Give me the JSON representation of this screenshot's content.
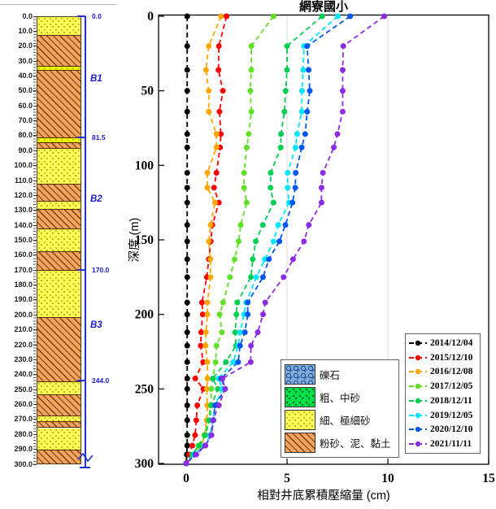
{
  "title": "網寮國小",
  "left_panel": {
    "depth_labels": [
      "0.0",
      "10.0",
      "20.0",
      "30.0",
      "40.0",
      "50.0",
      "60.0",
      "70.0",
      "80.0",
      "90.0",
      "100.0",
      "110.0",
      "120.0",
      "130.0",
      "140.0",
      "150.0",
      "160.0",
      "170.0",
      "180.0",
      "190.0",
      "200.0",
      "210.0",
      "220.0",
      "230.0",
      "240.0",
      "250.0",
      "260.0",
      "270.0",
      "280.0",
      "290.0",
      "300.0"
    ],
    "layers": [
      {
        "from": 0,
        "to": 12.5,
        "type": "fine"
      },
      {
        "from": 12.5,
        "to": 33.5,
        "type": "clay"
      },
      {
        "from": 33.5,
        "to": 35.5,
        "type": "fine",
        "bright": true
      },
      {
        "from": 35.5,
        "to": 81.5,
        "type": "clay"
      },
      {
        "from": 81.5,
        "to": 84,
        "type": "fine",
        "bright": true
      },
      {
        "from": 84,
        "to": 88.5,
        "type": "clay"
      },
      {
        "from": 88.5,
        "to": 112,
        "type": "fine"
      },
      {
        "from": 112,
        "to": 124,
        "type": "clay"
      },
      {
        "from": 124,
        "to": 129,
        "type": "fine"
      },
      {
        "from": 129,
        "to": 142.5,
        "type": "clay"
      },
      {
        "from": 142.5,
        "to": 157,
        "type": "fine"
      },
      {
        "from": 157,
        "to": 170,
        "type": "clay"
      },
      {
        "from": 170,
        "to": 201,
        "type": "fine"
      },
      {
        "from": 201,
        "to": 245,
        "type": "clay"
      },
      {
        "from": 245,
        "to": 253,
        "type": "fine"
      },
      {
        "from": 253,
        "to": 267.5,
        "type": "clay"
      },
      {
        "from": 267.5,
        "to": 271,
        "type": "fine"
      },
      {
        "from": 271,
        "to": 275.5,
        "type": "clay"
      },
      {
        "from": 275.5,
        "to": 290,
        "type": "fine"
      },
      {
        "from": 290,
        "to": 300,
        "type": "clay"
      }
    ],
    "boundary_marks": [
      {
        "label": "0.0",
        "depth": 0
      },
      {
        "label": "81.5",
        "depth": 81.5
      },
      {
        "label": "170.0",
        "depth": 170
      },
      {
        "label": "244.0",
        "depth": 244
      }
    ],
    "zone_labels": [
      {
        "label": "B1",
        "depth": 42
      },
      {
        "label": "B2",
        "depth": 123
      },
      {
        "label": "B3",
        "depth": 207
      }
    ],
    "well_line_color": "#2233CC"
  },
  "litho_legend": [
    {
      "label": "礫石",
      "pattern": "gravel"
    },
    {
      "label": "粗、中砂",
      "pattern": "coarse"
    },
    {
      "label": "細、極細砂",
      "pattern": "fine"
    },
    {
      "label": "粉砂、泥、黏土",
      "pattern": "clay"
    }
  ],
  "chart_data": {
    "type": "line",
    "title": "網寮國小",
    "xlabel": "相對井底累積壓縮量 (cm)",
    "ylabel": "深度 (m)",
    "xlim": [
      -1.4,
      15
    ],
    "ylim": [
      0,
      300
    ],
    "y_inverted": true,
    "grid": "vertical-only",
    "gridlines_x": [
      0,
      5,
      10
    ],
    "x_ticks": [
      "0",
      "5",
      "10",
      "15"
    ],
    "x_tick_values": [
      0,
      5,
      10,
      15
    ],
    "y_ticks": [
      "0",
      "50",
      "100",
      "150",
      "200",
      "250",
      "300"
    ],
    "y_tick_values": [
      0,
      50,
      100,
      150,
      200,
      250,
      300
    ],
    "legend_position": "lower-right",
    "depths": [
      0,
      20,
      36,
      50,
      64,
      79,
      88,
      105,
      115,
      125,
      140,
      151,
      163,
      175,
      192,
      200,
      212,
      221,
      232,
      243,
      250,
      261,
      271,
      281,
      288,
      294,
      300
    ],
    "series": [
      {
        "name": "2014/12/04",
        "color": "#000000",
        "values": [
          0.05,
          0.05,
          0.05,
          0.05,
          0.05,
          0.05,
          0.05,
          0.05,
          0.05,
          0.05,
          0.05,
          0.05,
          0.05,
          0.05,
          0.05,
          0.05,
          0.05,
          0.05,
          0.05,
          0.05,
          0.05,
          0.05,
          0.05,
          0.05,
          0.05,
          0.03,
          0.0
        ]
      },
      {
        "name": "2015/12/10",
        "color": "#FF0000",
        "values": [
          2.0,
          1.62,
          1.6,
          1.82,
          1.65,
          1.72,
          1.68,
          1.5,
          1.38,
          1.62,
          1.3,
          1.22,
          1.12,
          1.02,
          0.78,
          0.82,
          0.74,
          0.72,
          0.84,
          0.45,
          0.85,
          0.55,
          0.5,
          0.44,
          0.3,
          0.15,
          0.0
        ]
      },
      {
        "name": "2016/12/08",
        "color": "#FFA500",
        "values": [
          1.73,
          1.12,
          0.98,
          1.12,
          1.12,
          1.5,
          1.5,
          1.05,
          1.05,
          1.43,
          1.21,
          1.12,
          1.2,
          1.21,
          1.05,
          1.05,
          0.98,
          0.96,
          1.05,
          1.05,
          1.02,
          1.05,
          1.02,
          0.89,
          0.78,
          0.4,
          0.0
        ]
      },
      {
        "name": "2017/12/05",
        "color": "#5FE026",
        "values": [
          4.33,
          3.23,
          3.23,
          3.18,
          3.23,
          3.1,
          3.0,
          2.87,
          2.87,
          3.0,
          2.7,
          2.6,
          2.4,
          2.17,
          1.83,
          1.66,
          1.77,
          1.5,
          1.46,
          1.32,
          1.25,
          1.22,
          1.1,
          0.9,
          0.6,
          0.3,
          0.0
        ]
      },
      {
        "name": "2018/12/11",
        "color": "#00CE4F",
        "values": [
          6.74,
          5.0,
          5.0,
          4.93,
          4.87,
          4.7,
          4.69,
          4.19,
          4.18,
          4.33,
          3.8,
          3.45,
          3.3,
          3.21,
          2.53,
          2.49,
          2.43,
          2.47,
          1.97,
          1.32,
          1.57,
          1.25,
          1.15,
          0.95,
          0.65,
          0.3,
          0.0
        ]
      },
      {
        "name": "2019/12/05",
        "color": "#00E5FF",
        "values": [
          7.52,
          5.84,
          5.8,
          5.74,
          5.73,
          5.5,
          5.42,
          5.03,
          5.03,
          5.1,
          4.56,
          4.33,
          3.9,
          3.48,
          2.97,
          2.87,
          2.67,
          2.58,
          2.33,
          1.6,
          1.8,
          1.43,
          1.3,
          1.19,
          0.9,
          0.4,
          0.0
        ]
      },
      {
        "name": "2020/12/10",
        "color": "#0055F0",
        "values": [
          8.13,
          6.0,
          6.07,
          6.13,
          6.0,
          5.9,
          5.73,
          5.43,
          5.41,
          5.27,
          4.92,
          4.62,
          4.1,
          3.81,
          3.05,
          3.05,
          2.91,
          2.67,
          2.58,
          1.73,
          1.93,
          1.43,
          1.35,
          1.25,
          0.95,
          0.45,
          0.0
        ]
      },
      {
        "name": "2021/11/11",
        "color": "#8B2BE2",
        "values": [
          9.82,
          7.79,
          7.76,
          7.76,
          7.76,
          7.5,
          7.32,
          6.78,
          6.71,
          6.71,
          6.08,
          5.84,
          5.3,
          4.83,
          3.92,
          3.81,
          3.55,
          3.21,
          3.2,
          1.8,
          1.93,
          1.62,
          1.32,
          1.25,
          0.95,
          0.5,
          0.0
        ]
      }
    ]
  }
}
